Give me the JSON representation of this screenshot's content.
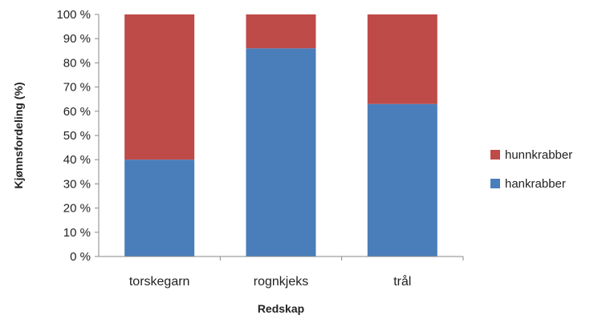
{
  "chart_data": {
    "type": "bar",
    "stacked": true,
    "categories": [
      "torskegarn",
      "rognkjeks",
      "trål"
    ],
    "series": [
      {
        "name": "hankrabber",
        "values": [
          40,
          86,
          63
        ],
        "color": "#4a7ebb"
      },
      {
        "name": "hunnkrabber",
        "values": [
          60,
          14,
          37
        ],
        "color": "#be4b48"
      }
    ],
    "xlabel": "Redskap",
    "ylabel": "Kjønnsfordeling (%)",
    "ylim": [
      0,
      100
    ],
    "yticks": [
      "0 %",
      "10 %",
      "20 %",
      "30 %",
      "40 %",
      "50 %",
      "60 %",
      "70 %",
      "80 %",
      "90 %",
      "100 %"
    ],
    "grid": false,
    "legend": {
      "placement": "right",
      "order": [
        "hunnkrabber",
        "hankrabber"
      ]
    }
  }
}
